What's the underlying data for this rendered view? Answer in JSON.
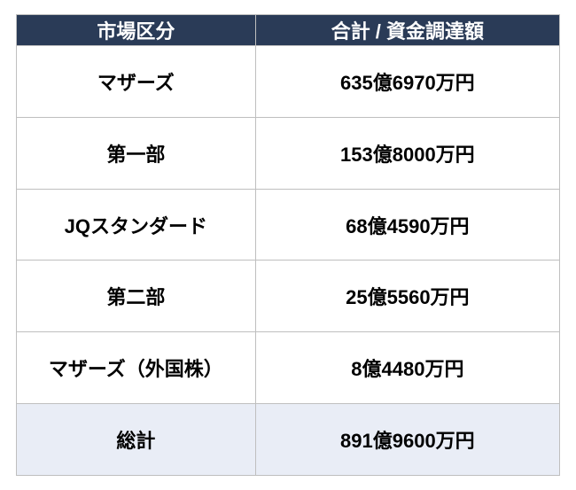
{
  "table": {
    "header_bg": "#2a3b57",
    "header_color": "#ffffff",
    "border_color": "#bfbfbf",
    "total_bg": "#e9edf6",
    "cell_font_size": 22,
    "header_font_size": 22,
    "columns": [
      "市場区分",
      "合計 / 資金調達額"
    ],
    "rows": [
      {
        "market": "マザーズ",
        "amount": "635億6970万円"
      },
      {
        "market": "第一部",
        "amount": "153億8000万円"
      },
      {
        "market": "JQスタンダード",
        "amount": "68億4590万円"
      },
      {
        "market": "第二部",
        "amount": "25億5560万円"
      },
      {
        "market": "マザーズ（外国株）",
        "amount": "8億4480万円"
      }
    ],
    "total": {
      "label": "総計",
      "amount": "891億9600万円"
    }
  }
}
